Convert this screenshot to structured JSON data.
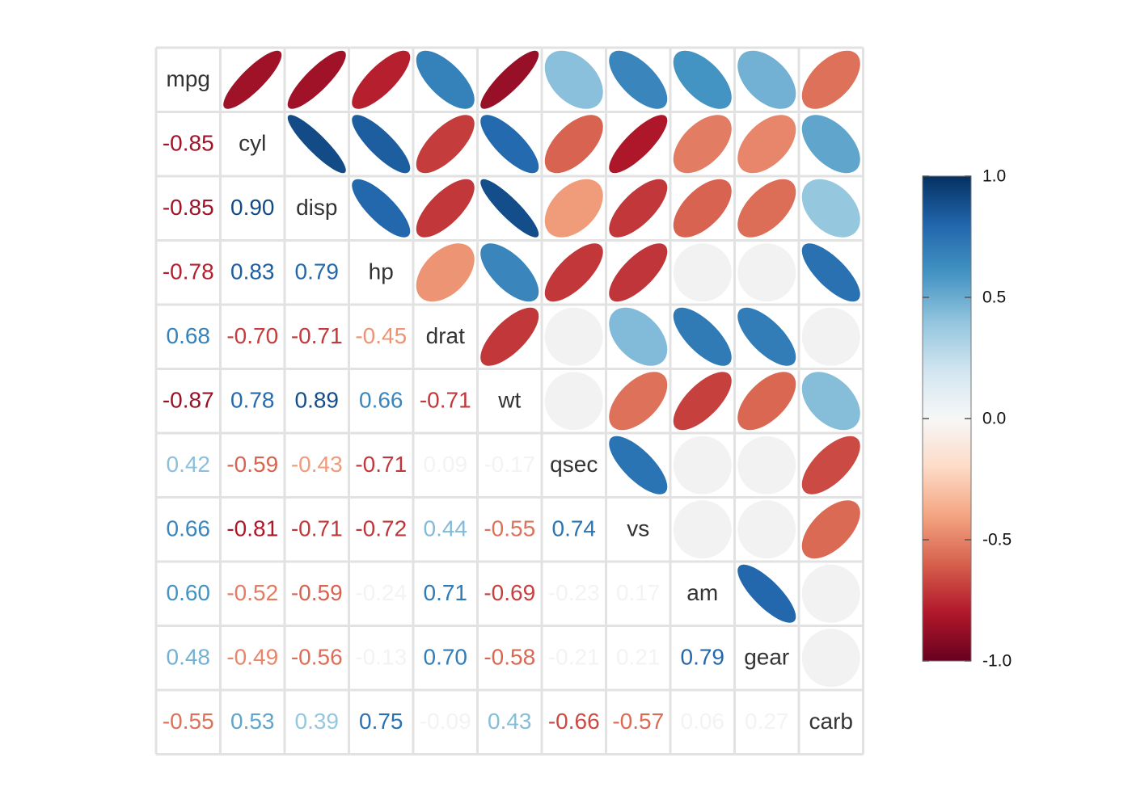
{
  "chart_data": {
    "type": "heatmap",
    "variables": [
      "mpg",
      "cyl",
      "disp",
      "hp",
      "drat",
      "wt",
      "qsec",
      "vs",
      "am",
      "gear",
      "carb"
    ],
    "matrix": [
      [
        1.0,
        -0.85,
        -0.85,
        -0.78,
        0.68,
        -0.87,
        0.42,
        0.66,
        0.6,
        0.48,
        -0.55
      ],
      [
        -0.85,
        1.0,
        0.9,
        0.83,
        -0.7,
        0.78,
        -0.59,
        -0.81,
        -0.52,
        -0.49,
        0.53
      ],
      [
        -0.85,
        0.9,
        1.0,
        0.79,
        -0.71,
        0.89,
        -0.43,
        -0.71,
        -0.59,
        -0.56,
        0.39
      ],
      [
        -0.78,
        0.83,
        0.79,
        1.0,
        -0.45,
        0.66,
        -0.71,
        -0.72,
        -0.24,
        -0.13,
        0.75
      ],
      [
        0.68,
        -0.7,
        -0.71,
        -0.45,
        1.0,
        -0.71,
        0.09,
        0.44,
        0.71,
        0.7,
        -0.09
      ],
      [
        -0.87,
        0.78,
        0.89,
        0.66,
        -0.71,
        1.0,
        -0.17,
        -0.55,
        -0.69,
        -0.58,
        0.43
      ],
      [
        0.42,
        -0.59,
        -0.43,
        -0.71,
        0.09,
        -0.17,
        1.0,
        0.74,
        -0.23,
        -0.21,
        -0.66
      ],
      [
        0.66,
        -0.81,
        -0.71,
        -0.72,
        0.44,
        -0.55,
        0.74,
        1.0,
        0.17,
        0.21,
        -0.57
      ],
      [
        0.6,
        -0.52,
        -0.59,
        -0.24,
        0.71,
        -0.69,
        -0.23,
        0.17,
        1.0,
        0.79,
        0.06
      ],
      [
        0.48,
        -0.49,
        -0.56,
        -0.13,
        0.7,
        -0.58,
        -0.21,
        0.21,
        0.79,
        1.0,
        0.27
      ],
      [
        -0.55,
        0.53,
        0.39,
        0.75,
        -0.09,
        0.43,
        -0.66,
        -0.57,
        0.06,
        0.27,
        1.0
      ]
    ],
    "lower_method": "number",
    "upper_method": "ellipse",
    "insignificant_shown_blank": true,
    "colorbar": {
      "range": [
        -1.0,
        1.0
      ],
      "tick_labels": [
        "1.0",
        "0.5",
        "0.0",
        "-0.5",
        "-1.0"
      ],
      "tick_values": [
        1.0,
        0.5,
        0.0,
        -0.5,
        -1.0
      ],
      "palette": [
        "#67001F",
        "#B2182B",
        "#D6604D",
        "#F4A582",
        "#FDDBC7",
        "#F7F7F7",
        "#D1E5F0",
        "#92C5DE",
        "#4393C3",
        "#2166AC",
        "#053061"
      ]
    },
    "insignificant_fill": "#F2F2F2",
    "label_color": "#333333",
    "grid_color": "#E2E2E2"
  }
}
